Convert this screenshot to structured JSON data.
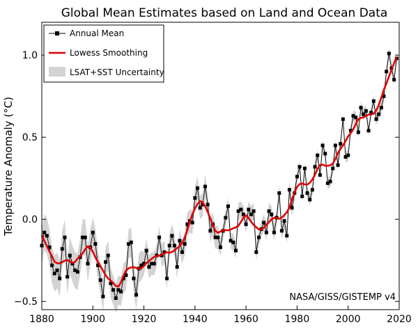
{
  "chart_data": {
    "type": "line",
    "title": "Global Mean Estimates based on Land and Ocean Data",
    "xlabel": "",
    "ylabel": "Temperature Anomaly (°C)",
    "xlim": [
      1880,
      2020
    ],
    "ylim": [
      -0.55,
      1.2
    ],
    "xticks": [
      1880,
      1900,
      1920,
      1940,
      1960,
      1980,
      2000,
      2020
    ],
    "yticks": [
      -0.5,
      0.0,
      0.5,
      1.0
    ],
    "ytick_labels": [
      "−0.5",
      "0.0",
      "0.5",
      "1.0"
    ],
    "grid": false,
    "legend_position": "top-left",
    "annotation": "NASA/GISS/GISTEMP v4",
    "legend": {
      "annual": "Annual Mean",
      "lowess": "Lowess Smoothing",
      "uncertainty": "LSAT+SST Uncertainty"
    },
    "colors": {
      "annual": "#000000",
      "lowess": "#e00000",
      "uncertainty": "#d3d3d3"
    },
    "years": [
      1880,
      1881,
      1882,
      1883,
      1884,
      1885,
      1886,
      1887,
      1888,
      1889,
      1890,
      1891,
      1892,
      1893,
      1894,
      1895,
      1896,
      1897,
      1898,
      1899,
      1900,
      1901,
      1902,
      1903,
      1904,
      1905,
      1906,
      1907,
      1908,
      1909,
      1910,
      1911,
      1912,
      1913,
      1914,
      1915,
      1916,
      1917,
      1918,
      1919,
      1920,
      1921,
      1922,
      1923,
      1924,
      1925,
      1926,
      1927,
      1928,
      1929,
      1930,
      1931,
      1932,
      1933,
      1934,
      1935,
      1936,
      1937,
      1938,
      1939,
      1940,
      1941,
      1942,
      1943,
      1944,
      1945,
      1946,
      1947,
      1948,
      1949,
      1950,
      1951,
      1952,
      1953,
      1954,
      1955,
      1956,
      1957,
      1958,
      1959,
      1960,
      1961,
      1962,
      1963,
      1964,
      1965,
      1966,
      1967,
      1968,
      1969,
      1970,
      1971,
      1972,
      1973,
      1974,
      1975,
      1976,
      1977,
      1978,
      1979,
      1980,
      1981,
      1982,
      1983,
      1984,
      1985,
      1986,
      1987,
      1988,
      1989,
      1990,
      1991,
      1992,
      1993,
      1994,
      1995,
      1996,
      1997,
      1998,
      1999,
      2000,
      2001,
      2002,
      2003,
      2004,
      2005,
      2006,
      2007,
      2008,
      2009,
      2010,
      2011,
      2012,
      2013,
      2014,
      2015,
      2016,
      2017,
      2018,
      2019
    ],
    "annual_mean": [
      -0.16,
      -0.08,
      -0.1,
      -0.17,
      -0.28,
      -0.33,
      -0.31,
      -0.36,
      -0.18,
      -0.11,
      -0.35,
      -0.22,
      -0.27,
      -0.31,
      -0.32,
      -0.23,
      -0.11,
      -0.11,
      -0.27,
      -0.17,
      -0.08,
      -0.15,
      -0.28,
      -0.37,
      -0.47,
      -0.26,
      -0.22,
      -0.39,
      -0.43,
      -0.48,
      -0.43,
      -0.44,
      -0.36,
      -0.34,
      -0.15,
      -0.14,
      -0.36,
      -0.46,
      -0.3,
      -0.28,
      -0.27,
      -0.19,
      -0.29,
      -0.27,
      -0.27,
      -0.22,
      -0.11,
      -0.22,
      -0.2,
      -0.36,
      -0.16,
      -0.1,
      -0.16,
      -0.29,
      -0.13,
      -0.2,
      -0.15,
      -0.03,
      -0.01,
      -0.02,
      0.13,
      0.19,
      0.07,
      0.09,
      0.2,
      0.09,
      -0.07,
      -0.03,
      -0.11,
      -0.11,
      -0.17,
      -0.07,
      0.01,
      0.08,
      -0.13,
      -0.14,
      -0.19,
      0.05,
      0.06,
      0.03,
      -0.03,
      0.06,
      0.03,
      0.05,
      -0.2,
      -0.11,
      -0.06,
      -0.02,
      -0.08,
      0.05,
      0.03,
      -0.08,
      0.01,
      0.16,
      -0.07,
      -0.01,
      -0.1,
      0.18,
      0.07,
      0.16,
      0.26,
      0.32,
      0.14,
      0.31,
      0.16,
      0.12,
      0.18,
      0.32,
      0.39,
      0.27,
      0.45,
      0.4,
      0.22,
      0.23,
      0.31,
      0.45,
      0.33,
      0.46,
      0.61,
      0.38,
      0.39,
      0.54,
      0.63,
      0.62,
      0.53,
      0.68,
      0.64,
      0.66,
      0.54,
      0.65,
      0.72,
      0.61,
      0.64,
      0.68,
      0.75,
      0.9,
      1.01,
      0.92,
      0.85,
      0.98
    ]
  }
}
